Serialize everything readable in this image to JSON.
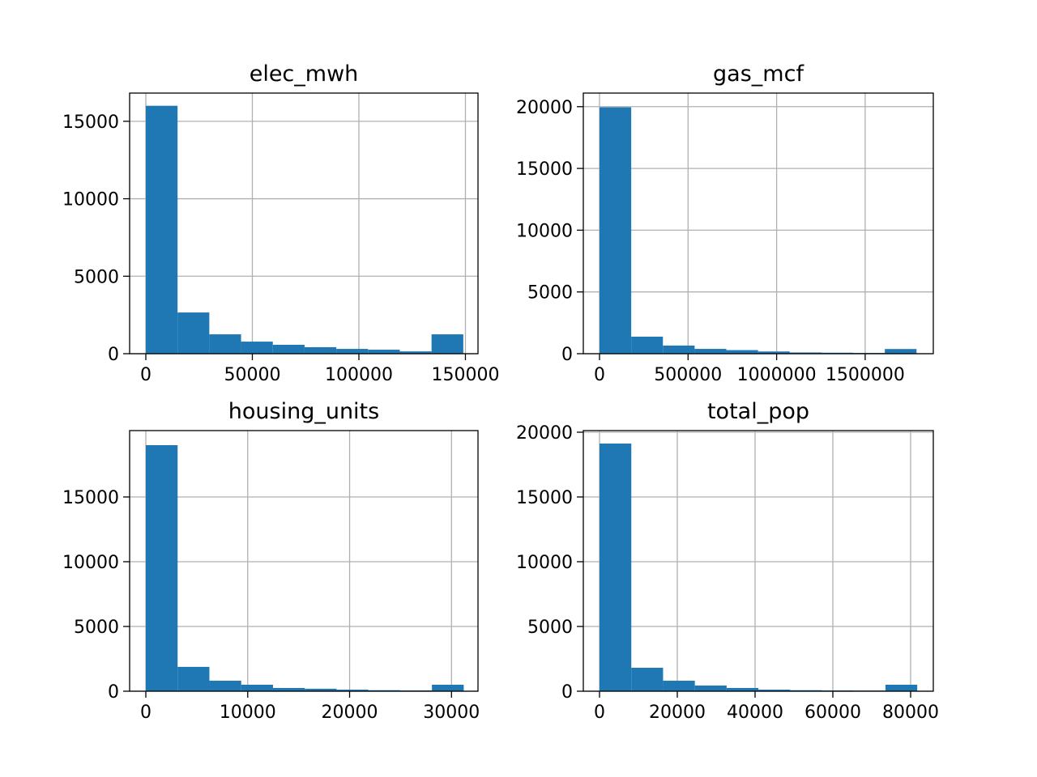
{
  "chart_data": [
    {
      "type": "histogram",
      "title": "elec_mwh",
      "color": "#1f77b4",
      "grid": true,
      "bins": [
        0,
        14900,
        29800,
        44700,
        59600,
        74500,
        89400,
        104300,
        119200,
        134100,
        149000
      ],
      "counts": [
        16000,
        2660,
        1250,
        780,
        575,
        420,
        310,
        260,
        150,
        1250
      ],
      "xlim": [
        -7600,
        155900
      ],
      "ylim": [
        0,
        16820
      ],
      "xticks": [
        0,
        50000,
        100000,
        150000
      ],
      "yticks": [
        0,
        5000,
        10000,
        15000
      ]
    },
    {
      "type": "histogram",
      "title": "gas_mcf",
      "color": "#1f77b4",
      "grid": true,
      "bins": [
        0,
        179000,
        358000,
        537000,
        716000,
        895000,
        1074000,
        1253000,
        1432000,
        1611000,
        1790000
      ],
      "counts": [
        19950,
        1380,
        660,
        390,
        290,
        180,
        100,
        80,
        60,
        380
      ],
      "xlim": [
        -91500,
        1884700
      ],
      "ylim": [
        0,
        21100
      ],
      "xticks": [
        0,
        500000,
        1000000,
        1500000
      ],
      "yticks": [
        0,
        5000,
        10000,
        15000,
        20000
      ]
    },
    {
      "type": "histogram",
      "title": "housing_units",
      "color": "#1f77b4",
      "grid": true,
      "bins": [
        0,
        3120,
        6240,
        9360,
        12480,
        15600,
        18720,
        21840,
        24960,
        28080,
        31200
      ],
      "counts": [
        19000,
        1880,
        810,
        500,
        250,
        190,
        120,
        80,
        60,
        500
      ],
      "xlim": [
        -1590,
        32600
      ],
      "ylim": [
        0,
        20125
      ],
      "xticks": [
        0,
        10000,
        20000,
        30000
      ],
      "yticks": [
        0,
        5000,
        10000,
        15000
      ]
    },
    {
      "type": "histogram",
      "title": "total_pop",
      "color": "#1f77b4",
      "grid": true,
      "bins": [
        0,
        8170,
        16340,
        24510,
        32680,
        40850,
        49020,
        57190,
        65360,
        73530,
        81700
      ],
      "counts": [
        19125,
        1810,
        810,
        440,
        250,
        120,
        80,
        60,
        50,
        500
      ],
      "xlim": [
        -4170,
        85830
      ],
      "ylim": [
        0,
        20125
      ],
      "xticks": [
        0,
        20000,
        40000,
        60000,
        80000
      ],
      "yticks": [
        0,
        5000,
        10000,
        15000,
        20000
      ]
    }
  ]
}
